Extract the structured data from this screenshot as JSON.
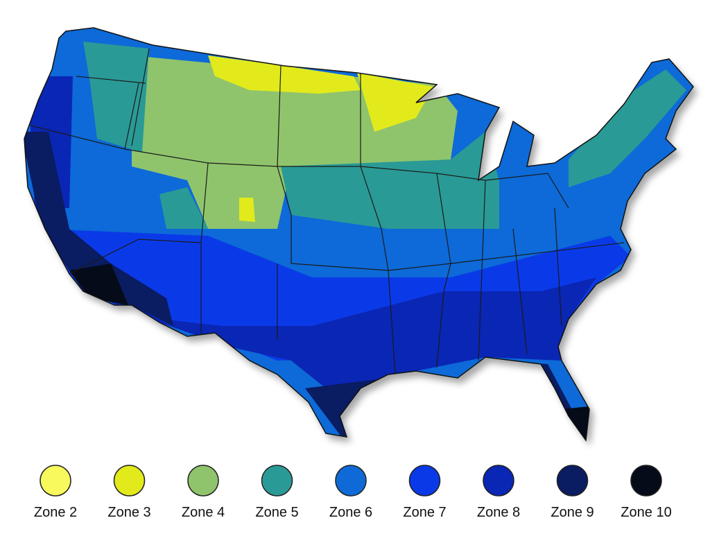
{
  "legend": [
    {
      "label": "Zone 2",
      "color": "#f7f95c"
    },
    {
      "label": "Zone 3",
      "color": "#e2ea1c"
    },
    {
      "label": "Zone 4",
      "color": "#8fc46c"
    },
    {
      "label": "Zone 5",
      "color": "#2a9a96"
    },
    {
      "label": "Zone 6",
      "color": "#0f6ad8"
    },
    {
      "label": "Zone 7",
      "color": "#0a3ae8"
    },
    {
      "label": "Zone 8",
      "color": "#0a26b4"
    },
    {
      "label": "Zone 9",
      "color": "#0a1c62"
    },
    {
      "label": "Zone 10",
      "color": "#050b18"
    }
  ]
}
